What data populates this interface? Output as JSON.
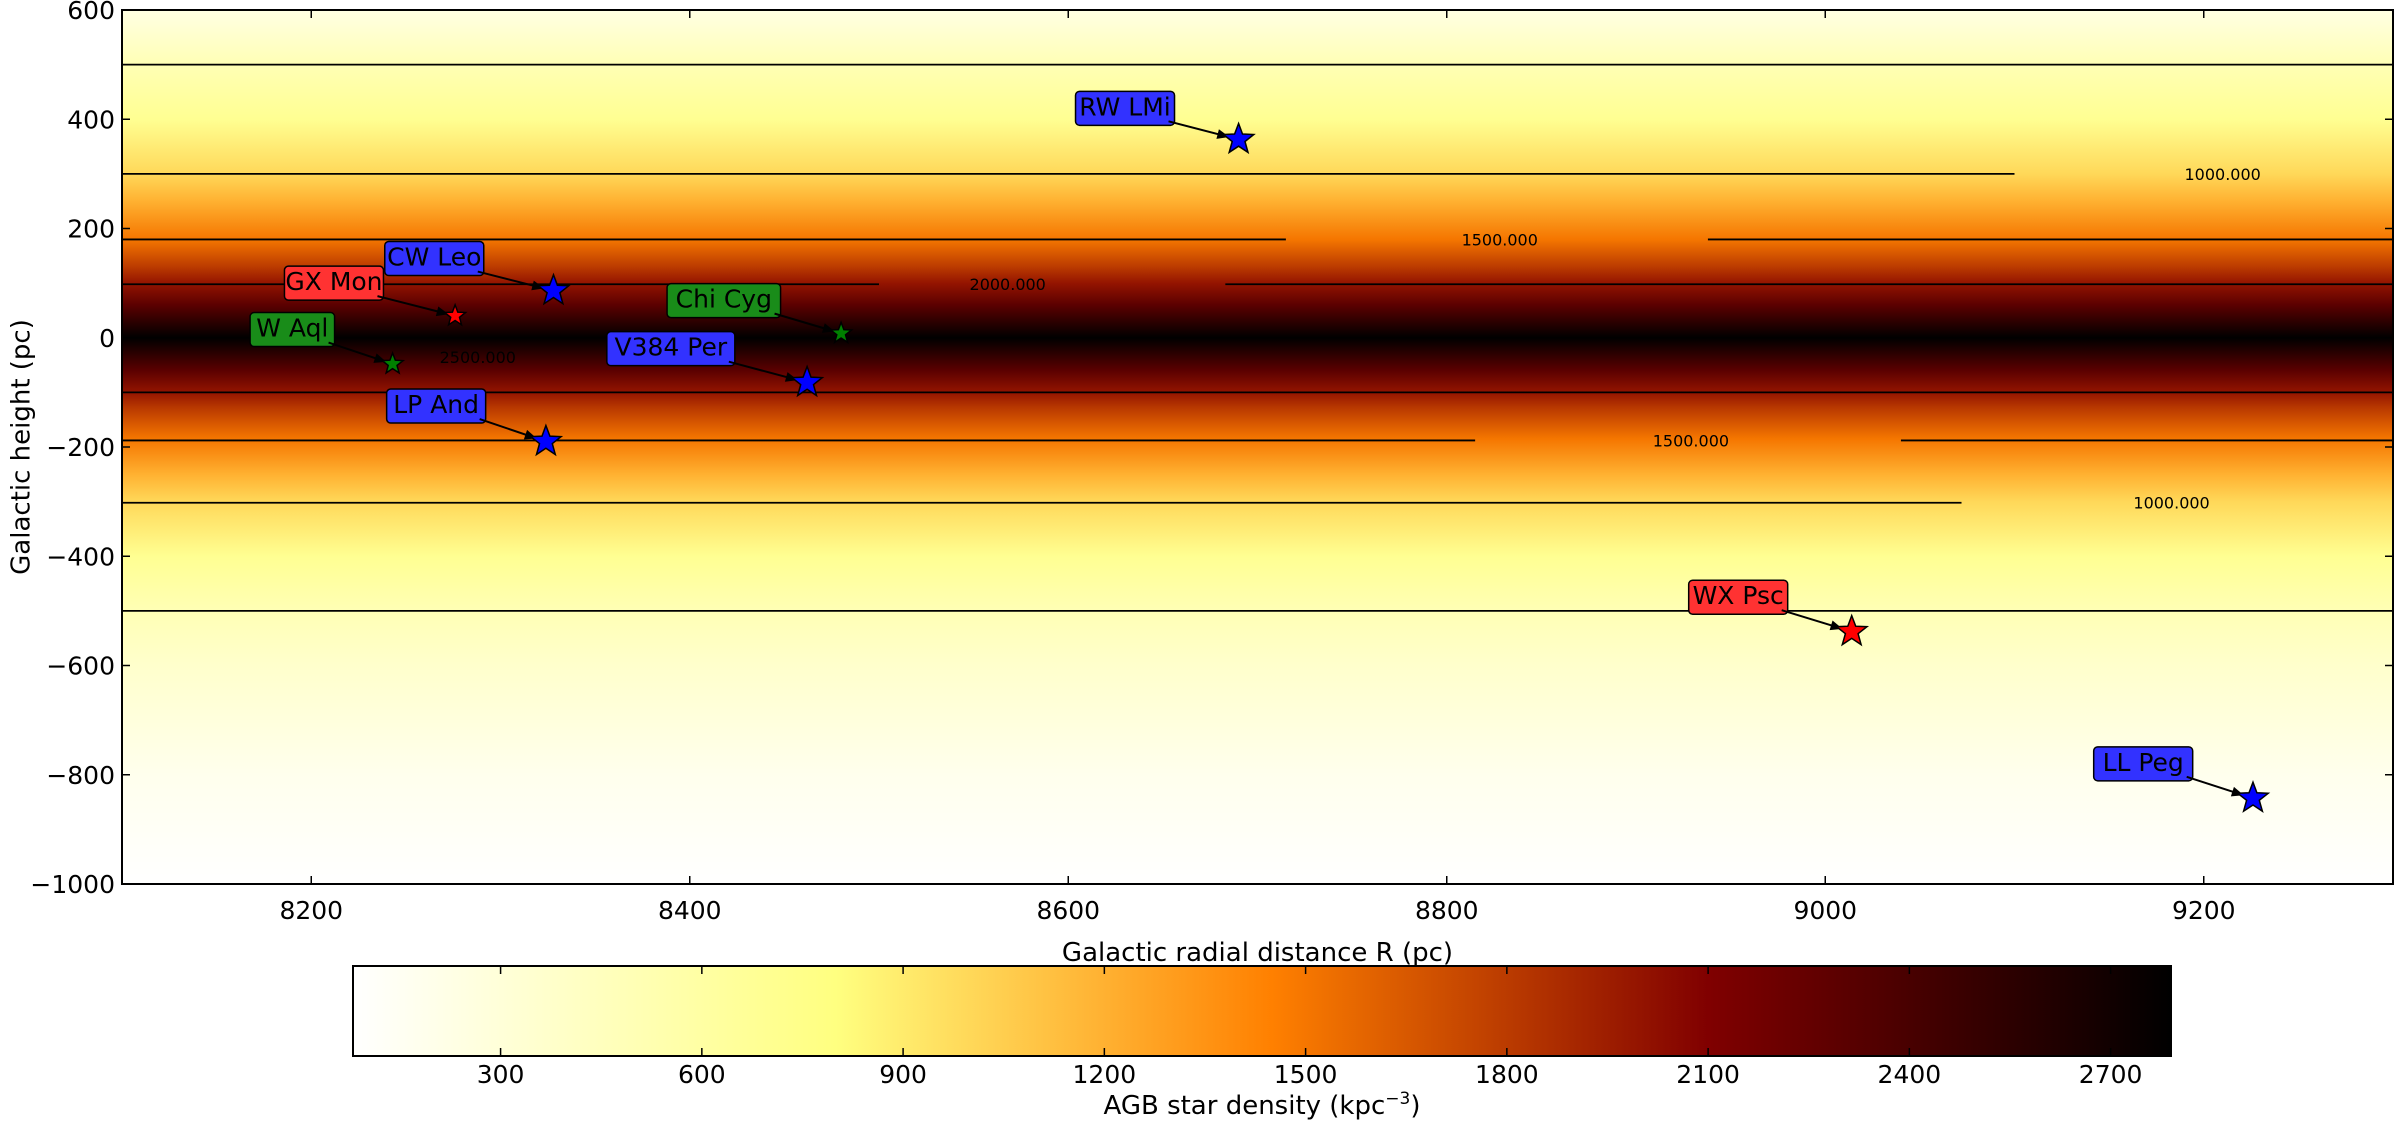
{
  "chart_data": {
    "type": "heatmap",
    "xlabel": "Galactic radial distance R (pc)",
    "ylabel": "Galactic height (pc)",
    "xlim": [
      8100,
      9300
    ],
    "ylim": [
      -1000,
      600
    ],
    "xticks": [
      8200,
      8400,
      8600,
      8800,
      9000,
      9200
    ],
    "yticks": [
      600,
      400,
      200,
      0,
      -200,
      -400,
      -600,
      -800,
      -1000
    ],
    "grid": false,
    "colormap": "afmhot_r",
    "colorbar": {
      "label": "AGB star density (kpc",
      "label_sup": "−3",
      "label_end": ")",
      "orientation": "horizontal",
      "placement": "bottom",
      "range": [
        80,
        2790
      ],
      "ticks": [
        300,
        600,
        900,
        1200,
        1500,
        1800,
        2100,
        2400,
        2700
      ],
      "stops": [
        {
          "v": 80,
          "color": "#ffffff"
        },
        {
          "v": 800,
          "color": "#ffff80"
        },
        {
          "v": 1450,
          "color": "#ff8000"
        },
        {
          "v": 2100,
          "color": "#800000"
        },
        {
          "v": 2790,
          "color": "#000000"
        }
      ]
    },
    "density_rows": [
      {
        "z": 600,
        "v": 240
      },
      {
        "z": 500,
        "v": 500
      },
      {
        "z": 400,
        "v": 700
      },
      {
        "z": 300,
        "v": 1000
      },
      {
        "z": 250,
        "v": 1200
      },
      {
        "z": 180,
        "v": 1500
      },
      {
        "z": 130,
        "v": 1800
      },
      {
        "z": 100,
        "v": 2000
      },
      {
        "z": 60,
        "v": 2300
      },
      {
        "z": 30,
        "v": 2550
      },
      {
        "z": 0,
        "v": 2790
      },
      {
        "z": -30,
        "v": 2550
      },
      {
        "z": -60,
        "v": 2300
      },
      {
        "z": -100,
        "v": 2000
      },
      {
        "z": -130,
        "v": 1800
      },
      {
        "z": -185,
        "v": 1500
      },
      {
        "z": -250,
        "v": 1200
      },
      {
        "z": -300,
        "v": 1000
      },
      {
        "z": -400,
        "v": 700
      },
      {
        "z": -500,
        "v": 500
      },
      {
        "z": -600,
        "v": 370
      },
      {
        "z": -800,
        "v": 180
      },
      {
        "z": -1000,
        "v": 80
      }
    ],
    "contours": [
      {
        "z": 500,
        "segments": [
          [
            8100,
            9300
          ]
        ]
      },
      {
        "z": 300,
        "segments": [
          [
            8100,
            9100
          ]
        ]
      },
      {
        "z": 180,
        "segments": [
          [
            8100,
            8715
          ],
          [
            8938,
            9300
          ]
        ]
      },
      {
        "z": 98,
        "segments": [
          [
            8100,
            8500
          ],
          [
            8683,
            9300
          ]
        ]
      },
      {
        "z": -100,
        "segments": [
          [
            8100,
            9300
          ]
        ]
      },
      {
        "z": -188,
        "segments": [
          [
            8100,
            8815
          ],
          [
            9040,
            9300
          ]
        ]
      },
      {
        "z": -302,
        "segments": [
          [
            8100,
            9072
          ]
        ]
      },
      {
        "z": -500,
        "segments": [
          [
            8100,
            9300
          ]
        ]
      }
    ],
    "contour_labels": [
      {
        "text": "1000.000",
        "x": 9210,
        "z": 300
      },
      {
        "text": "1500.000",
        "x": 8828,
        "z": 180
      },
      {
        "text": "2000.000",
        "x": 8568,
        "z": 98
      },
      {
        "text": "2500.000",
        "x": 8288,
        "z": -35
      },
      {
        "text": "1500.000",
        "x": 8929,
        "z": -188
      },
      {
        "text": "1000.000",
        "x": 9183,
        "z": -302
      }
    ],
    "stars": [
      {
        "name": "RW LMi",
        "x": 8690,
        "z": 363,
        "color": "#0000ff",
        "box_color": "#3232ff",
        "size": "large",
        "label_x": 8630,
        "label_z": 420
      },
      {
        "name": "CW Leo",
        "x": 8328,
        "z": 86,
        "color": "#0000ff",
        "box_color": "#3232ff",
        "size": "large",
        "label_x": 8265,
        "label_z": 145
      },
      {
        "name": "GX Mon",
        "x": 8276,
        "z": 40,
        "color": "#ff0000",
        "box_color": "#ff3232",
        "size": "small",
        "label_x": 8212,
        "label_z": 100
      },
      {
        "name": "W Aql",
        "x": 8243,
        "z": -48,
        "color": "#008000",
        "box_color": "#198c19",
        "size": "small",
        "label_x": 8190,
        "label_z": 15
      },
      {
        "name": "Chi Cyg",
        "x": 8480,
        "z": 8,
        "color": "#008000",
        "box_color": "#198c19",
        "size": "small",
        "label_x": 8418,
        "label_z": 68
      },
      {
        "name": "V384 Per",
        "x": 8462,
        "z": -82,
        "color": "#0000ff",
        "box_color": "#3232ff",
        "size": "large",
        "label_x": 8390,
        "label_z": -20
      },
      {
        "name": "LP And",
        "x": 8324,
        "z": -190,
        "color": "#0000ff",
        "box_color": "#3232ff",
        "size": "large",
        "label_x": 8266,
        "label_z": -125
      },
      {
        "name": "WX Psc",
        "x": 9014,
        "z": -538,
        "color": "#ff0000",
        "box_color": "#ff3232",
        "size": "large",
        "label_x": 8954,
        "label_z": -475
      },
      {
        "name": "LL Peg",
        "x": 9226,
        "z": -843,
        "color": "#0000ff",
        "box_color": "#3232ff",
        "size": "large",
        "label_x": 9168,
        "label_z": -780
      }
    ]
  }
}
